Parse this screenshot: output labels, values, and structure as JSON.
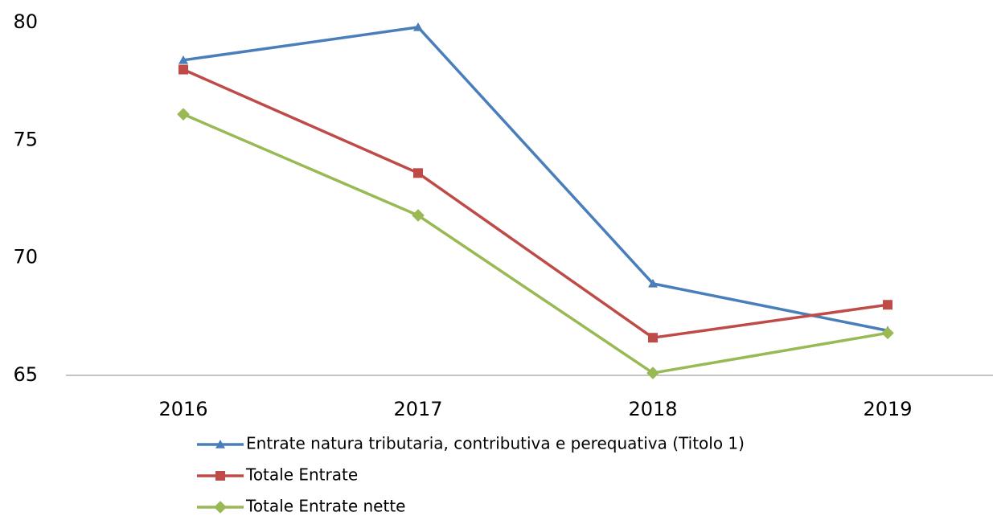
{
  "chart_data": {
    "type": "line",
    "categories": [
      "2016",
      "2017",
      "2018",
      "2019"
    ],
    "series": [
      {
        "name": "Entrate natura tributaria, contributiva e perequativa (Titolo 1)",
        "color": "#4a7ebb",
        "marker": "triangle",
        "values": [
          78.4,
          79.8,
          68.9,
          66.9
        ]
      },
      {
        "name": "Totale Entrate",
        "color": "#be4b48",
        "marker": "square",
        "values": [
          78.0,
          73.6,
          66.6,
          68.0
        ]
      },
      {
        "name": "Totale Entrate nette",
        "color": "#98b954",
        "marker": "diamond",
        "values": [
          76.1,
          71.8,
          65.1,
          66.8
        ]
      }
    ],
    "ylim": [
      65,
      80
    ],
    "yticks": [
      65,
      70,
      75,
      80
    ],
    "grid": false,
    "legend": "bottom"
  }
}
